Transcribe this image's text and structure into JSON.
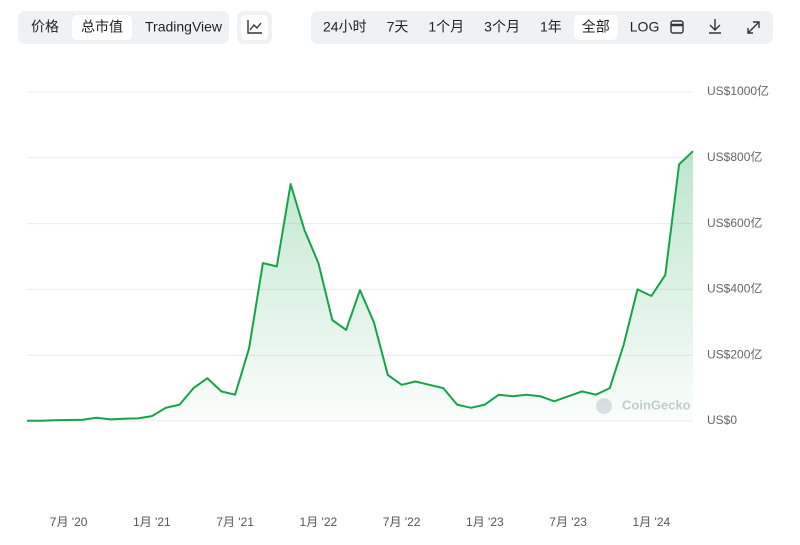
{
  "toolbar": {
    "tabs": [
      "价格",
      "总市值",
      "TradingView"
    ],
    "active_tab": 1,
    "ranges": [
      "24小时",
      "7天",
      "1个月",
      "3个月",
      "1年",
      "全部",
      "LOG"
    ],
    "active_range": 5
  },
  "chart_data": {
    "type": "line",
    "watermark": "CoinGecko",
    "x": [
      "2020-04",
      "2020-05",
      "2020-06",
      "2020-07",
      "2020-08",
      "2020-09",
      "2020-10",
      "2020-11",
      "2020-12",
      "2021-01",
      "2021-02",
      "2021-03",
      "2021-04",
      "2021-05",
      "2021-06",
      "2021-07",
      "2021-08",
      "2021-09",
      "2021-10",
      "2021-11",
      "2021-12",
      "2022-01",
      "2022-02",
      "2022-03",
      "2022-04",
      "2022-05",
      "2022-06",
      "2022-07",
      "2022-08",
      "2022-09",
      "2022-10",
      "2022-11",
      "2022-12",
      "2023-01",
      "2023-02",
      "2023-03",
      "2023-04",
      "2023-05",
      "2023-06",
      "2023-07",
      "2023-08",
      "2023-09",
      "2023-10",
      "2023-11",
      "2023-12",
      "2024-01",
      "2024-02",
      "2024-03",
      "2024-04"
    ],
    "series": [
      {
        "name": "总市值",
        "color": "#16a34a",
        "values": [
          1,
          1,
          2,
          3,
          4,
          10,
          5,
          7,
          8,
          15,
          40,
          50,
          100,
          130,
          90,
          80,
          220,
          480,
          470,
          720,
          580,
          480,
          307,
          277,
          398,
          300,
          140,
          110,
          120,
          110,
          100,
          50,
          40,
          50,
          80,
          75,
          80,
          75,
          60,
          75,
          90,
          80,
          100,
          231,
          400,
          380,
          444,
          780,
          820
        ]
      }
    ],
    "xlim": [
      "2020-04",
      "2024-04"
    ],
    "xticks": [
      {
        "value": "2020-07",
        "label": "7月 '20"
      },
      {
        "value": "2021-01",
        "label": "1月 '21"
      },
      {
        "value": "2021-07",
        "label": "7月 '21"
      },
      {
        "value": "2022-01",
        "label": "1月 '22"
      },
      {
        "value": "2022-07",
        "label": "7月 '22"
      },
      {
        "value": "2023-01",
        "label": "1月 '23"
      },
      {
        "value": "2023-07",
        "label": "7月 '23"
      },
      {
        "value": "2024-01",
        "label": "1月 '24"
      }
    ],
    "ylim": [
      0,
      1000
    ],
    "yticks": [
      {
        "value": 0,
        "label": "US$0"
      },
      {
        "value": 200,
        "label": "US$200亿"
      },
      {
        "value": 400,
        "label": "US$400亿"
      },
      {
        "value": 600,
        "label": "US$600亿"
      },
      {
        "value": 800,
        "label": "US$800亿"
      },
      {
        "value": 1000,
        "label": "US$1000亿"
      }
    ],
    "grid": true
  }
}
